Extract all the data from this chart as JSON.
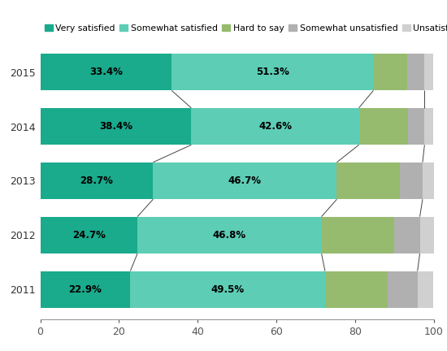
{
  "years": [
    "2015",
    "2014",
    "2013",
    "2012",
    "2011"
  ],
  "categories": [
    "Very satisfied",
    "Somewhat satisfied",
    "Hard to say",
    "Somewhat unsatisfied",
    "Unsatisfied"
  ],
  "colors": [
    "#1aaa8c",
    "#5dcdb5",
    "#96bb6e",
    "#b0b0b0",
    "#d0d0d0"
  ],
  "values": [
    [
      33.4,
      51.3,
      8.5,
      4.5,
      2.3
    ],
    [
      38.4,
      42.6,
      12.5,
      4.2,
      2.3
    ],
    [
      28.7,
      46.7,
      16.0,
      5.8,
      2.8
    ],
    [
      24.7,
      46.8,
      18.5,
      6.5,
      3.5
    ],
    [
      22.9,
      49.5,
      16.0,
      7.5,
      4.1
    ]
  ],
  "labels": [
    [
      "33.4%",
      "51.3%",
      "",
      "",
      ""
    ],
    [
      "38.4%",
      "42.6%",
      "",
      "",
      ""
    ],
    [
      "28.7%",
      "46.7%",
      "",
      "",
      ""
    ],
    [
      "24.7%",
      "46.8%",
      "",
      "",
      ""
    ],
    [
      "22.9%",
      "49.5%",
      "",
      "",
      ""
    ]
  ],
  "xlim": [
    0,
    100
  ],
  "background_color": "#ffffff",
  "bar_height": 0.68,
  "label_fontsize": 8.5,
  "tick_fontsize": 9,
  "legend_fontsize": 7.8
}
